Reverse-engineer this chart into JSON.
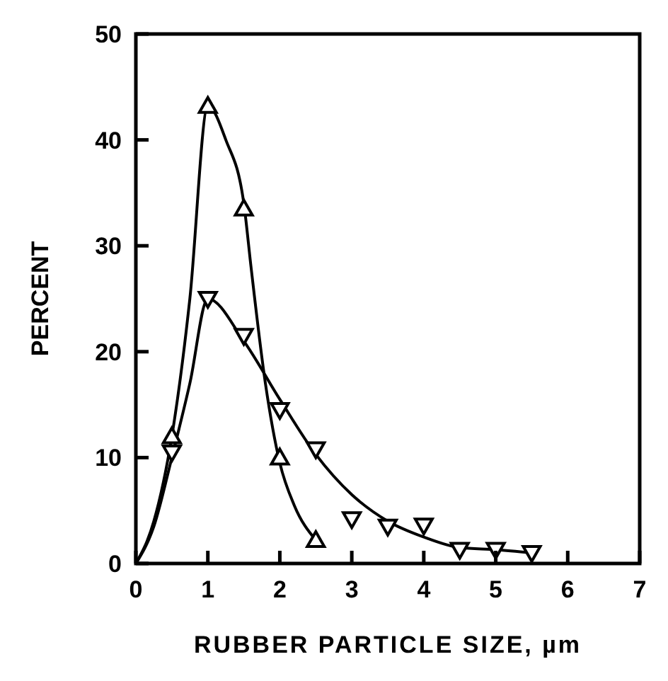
{
  "chart_data": {
    "type": "scatter",
    "xlabel": "RUBBER PARTICLE SIZE, µm",
    "ylabel": "PERCENT",
    "xlim": [
      0,
      7
    ],
    "ylim": [
      0,
      50
    ],
    "xticks": [
      0,
      1,
      2,
      3,
      4,
      5,
      6,
      7
    ],
    "yticks": [
      0,
      10,
      20,
      30,
      40,
      50
    ],
    "grid": false,
    "series": [
      {
        "marker": "triangle",
        "color": "#000000",
        "x": [
          0.5,
          1,
          1.5,
          2,
          2.5
        ],
        "values": [
          12,
          43.2,
          33.5,
          10,
          2.2
        ]
      },
      {
        "marker": "triangle-down",
        "color": "#000000",
        "x": [
          0.5,
          1,
          1.5,
          2,
          2.5,
          3,
          3.5,
          4,
          4.5,
          5,
          5.5
        ],
        "values": [
          10.5,
          25,
          21.5,
          14.5,
          10.8,
          4.2,
          3.5,
          3.6,
          1.3,
          1.3,
          1
        ]
      },
      {
        "type": "line",
        "marker": "none",
        "line_style": "solid",
        "color": "#000000",
        "x": [
          0,
          0.25,
          0.5,
          0.75,
          1,
          1.25,
          1.5,
          1.6,
          1.8,
          2,
          2.2,
          2.5
        ],
        "values": [
          0,
          4,
          12,
          25,
          43.2,
          40,
          34,
          28,
          17,
          9.5,
          5.5,
          2.2
        ]
      },
      {
        "type": "line",
        "marker": "none",
        "line_style": "solid",
        "color": "#000000",
        "x": [
          0,
          0.25,
          0.5,
          0.75,
          1,
          1.5,
          2,
          2.5,
          3,
          3.5,
          4,
          4.5,
          5,
          5.5
        ],
        "values": [
          0,
          3.5,
          10,
          17,
          25,
          21,
          15.5,
          10.3,
          6.5,
          4,
          2.5,
          1.5,
          1.3,
          1
        ]
      }
    ]
  }
}
